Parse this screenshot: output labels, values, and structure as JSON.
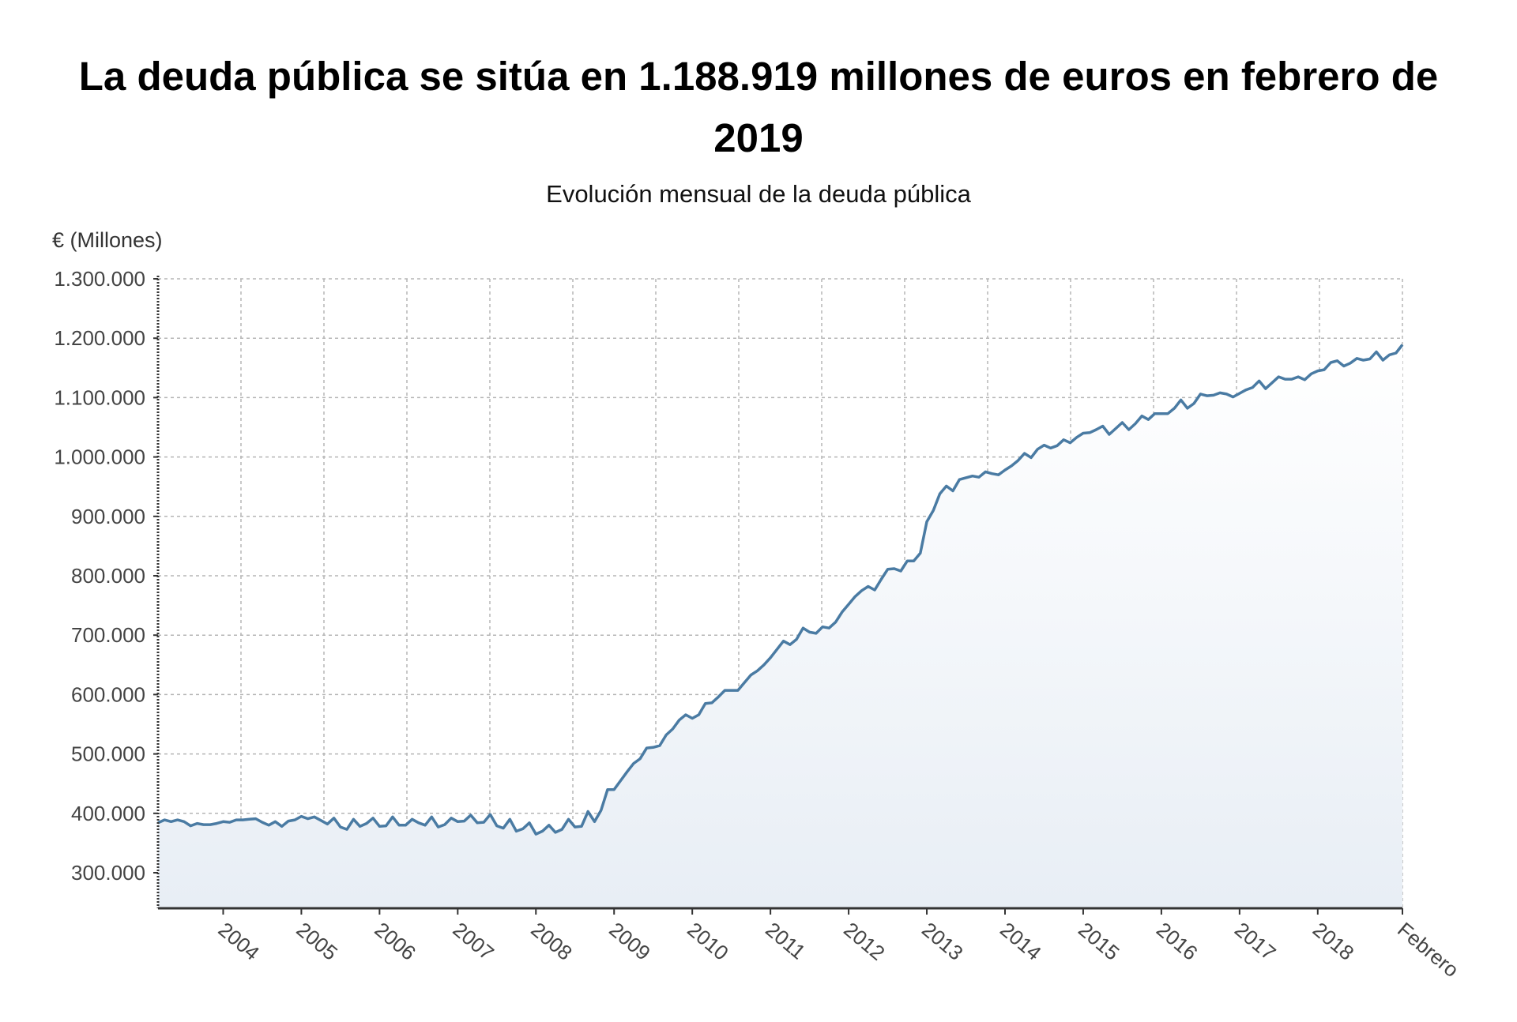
{
  "chart_data": {
    "type": "area",
    "title": "La deuda pública se sitúa en 1.188.919 millones de euros en febrero de 2019",
    "subtitle": "Evolución mensual de la deuda pública",
    "ylabel": "€ (Millones)",
    "xlabel": "",
    "x_start": "2003-03",
    "x_end": "2019-02",
    "frequency": "monthly",
    "ylim": [
      240000,
      1300000
    ],
    "grid": true,
    "legend": "none",
    "line_color": "#4a7ba3",
    "fill_color": "#e8eef5",
    "y_ticks": [
      300000,
      400000,
      500000,
      600000,
      700000,
      800000,
      900000,
      1000000,
      1100000,
      1200000,
      1300000
    ],
    "y_tick_labels": [
      "300.000",
      "400.000",
      "500.000",
      "600.000",
      "700.000",
      "800.000",
      "900.000",
      "1.000.000",
      "1.100.000",
      "1.200.000",
      "1.300.000"
    ],
    "x_tick_labels": [
      "2004",
      "2005",
      "2006",
      "2007",
      "2008",
      "2009",
      "2010",
      "2011",
      "2012",
      "2013",
      "2014",
      "2015",
      "2016",
      "2017",
      "2018",
      "Febrero"
    ],
    "x_tick_dates": [
      "2004-01",
      "2005-01",
      "2006-01",
      "2007-01",
      "2008-01",
      "2009-01",
      "2010-01",
      "2011-01",
      "2012-01",
      "2013-01",
      "2014-01",
      "2015-01",
      "2016-01",
      "2017-01",
      "2018-01",
      "2019-02"
    ],
    "values": [
      384000,
      389000,
      386000,
      389000,
      386000,
      379000,
      383000,
      381000,
      381000,
      383000,
      386000,
      385000,
      389000,
      389000,
      390000,
      391000,
      385000,
      380000,
      386000,
      378000,
      387000,
      389000,
      395000,
      391000,
      394000,
      388000,
      382000,
      392000,
      377000,
      373000,
      390000,
      378000,
      383000,
      392000,
      378000,
      379000,
      394000,
      380000,
      380000,
      390000,
      384000,
      380000,
      394000,
      377000,
      381000,
      392000,
      386000,
      387000,
      397000,
      384000,
      385000,
      398000,
      379000,
      375000,
      390000,
      370000,
      374000,
      384000,
      365000,
      370000,
      380000,
      368000,
      373000,
      390000,
      377000,
      378000,
      403000,
      386000,
      405000,
      440000,
      440000,
      455000,
      470000,
      484000,
      492000,
      510000,
      511000,
      514000,
      532000,
      542000,
      557000,
      566000,
      560000,
      566000,
      585000,
      586000,
      596000,
      607000,
      607000,
      607000,
      620000,
      633000,
      640000,
      650000,
      662000,
      676000,
      690000,
      684000,
      693000,
      712000,
      705000,
      703000,
      714000,
      712000,
      722000,
      739000,
      752000,
      765000,
      775000,
      782000,
      776000,
      794000,
      811000,
      812000,
      808000,
      825000,
      825000,
      838000,
      891000,
      910000,
      938000,
      951000,
      943000,
      962000,
      965000,
      968000,
      966000,
      975000,
      972000,
      970000,
      978000,
      985000,
      994000,
      1006000,
      999000,
      1013000,
      1020000,
      1015000,
      1019000,
      1029000,
      1024000,
      1033000,
      1040000,
      1041000,
      1046000,
      1052000,
      1038000,
      1048000,
      1058000,
      1046000,
      1056000,
      1069000,
      1063000,
      1073000,
      1073000,
      1073000,
      1082000,
      1096000,
      1082000,
      1090000,
      1106000,
      1103000,
      1104000,
      1108000,
      1106000,
      1101000,
      1107000,
      1113000,
      1117000,
      1128000,
      1115000,
      1125000,
      1135000,
      1131000,
      1131000,
      1135000,
      1130000,
      1140000,
      1145000,
      1147000,
      1159000,
      1162000,
      1153000,
      1158000,
      1166000,
      1163000,
      1165000,
      1177000,
      1163000,
      1172000,
      1175000,
      1188919
    ]
  }
}
